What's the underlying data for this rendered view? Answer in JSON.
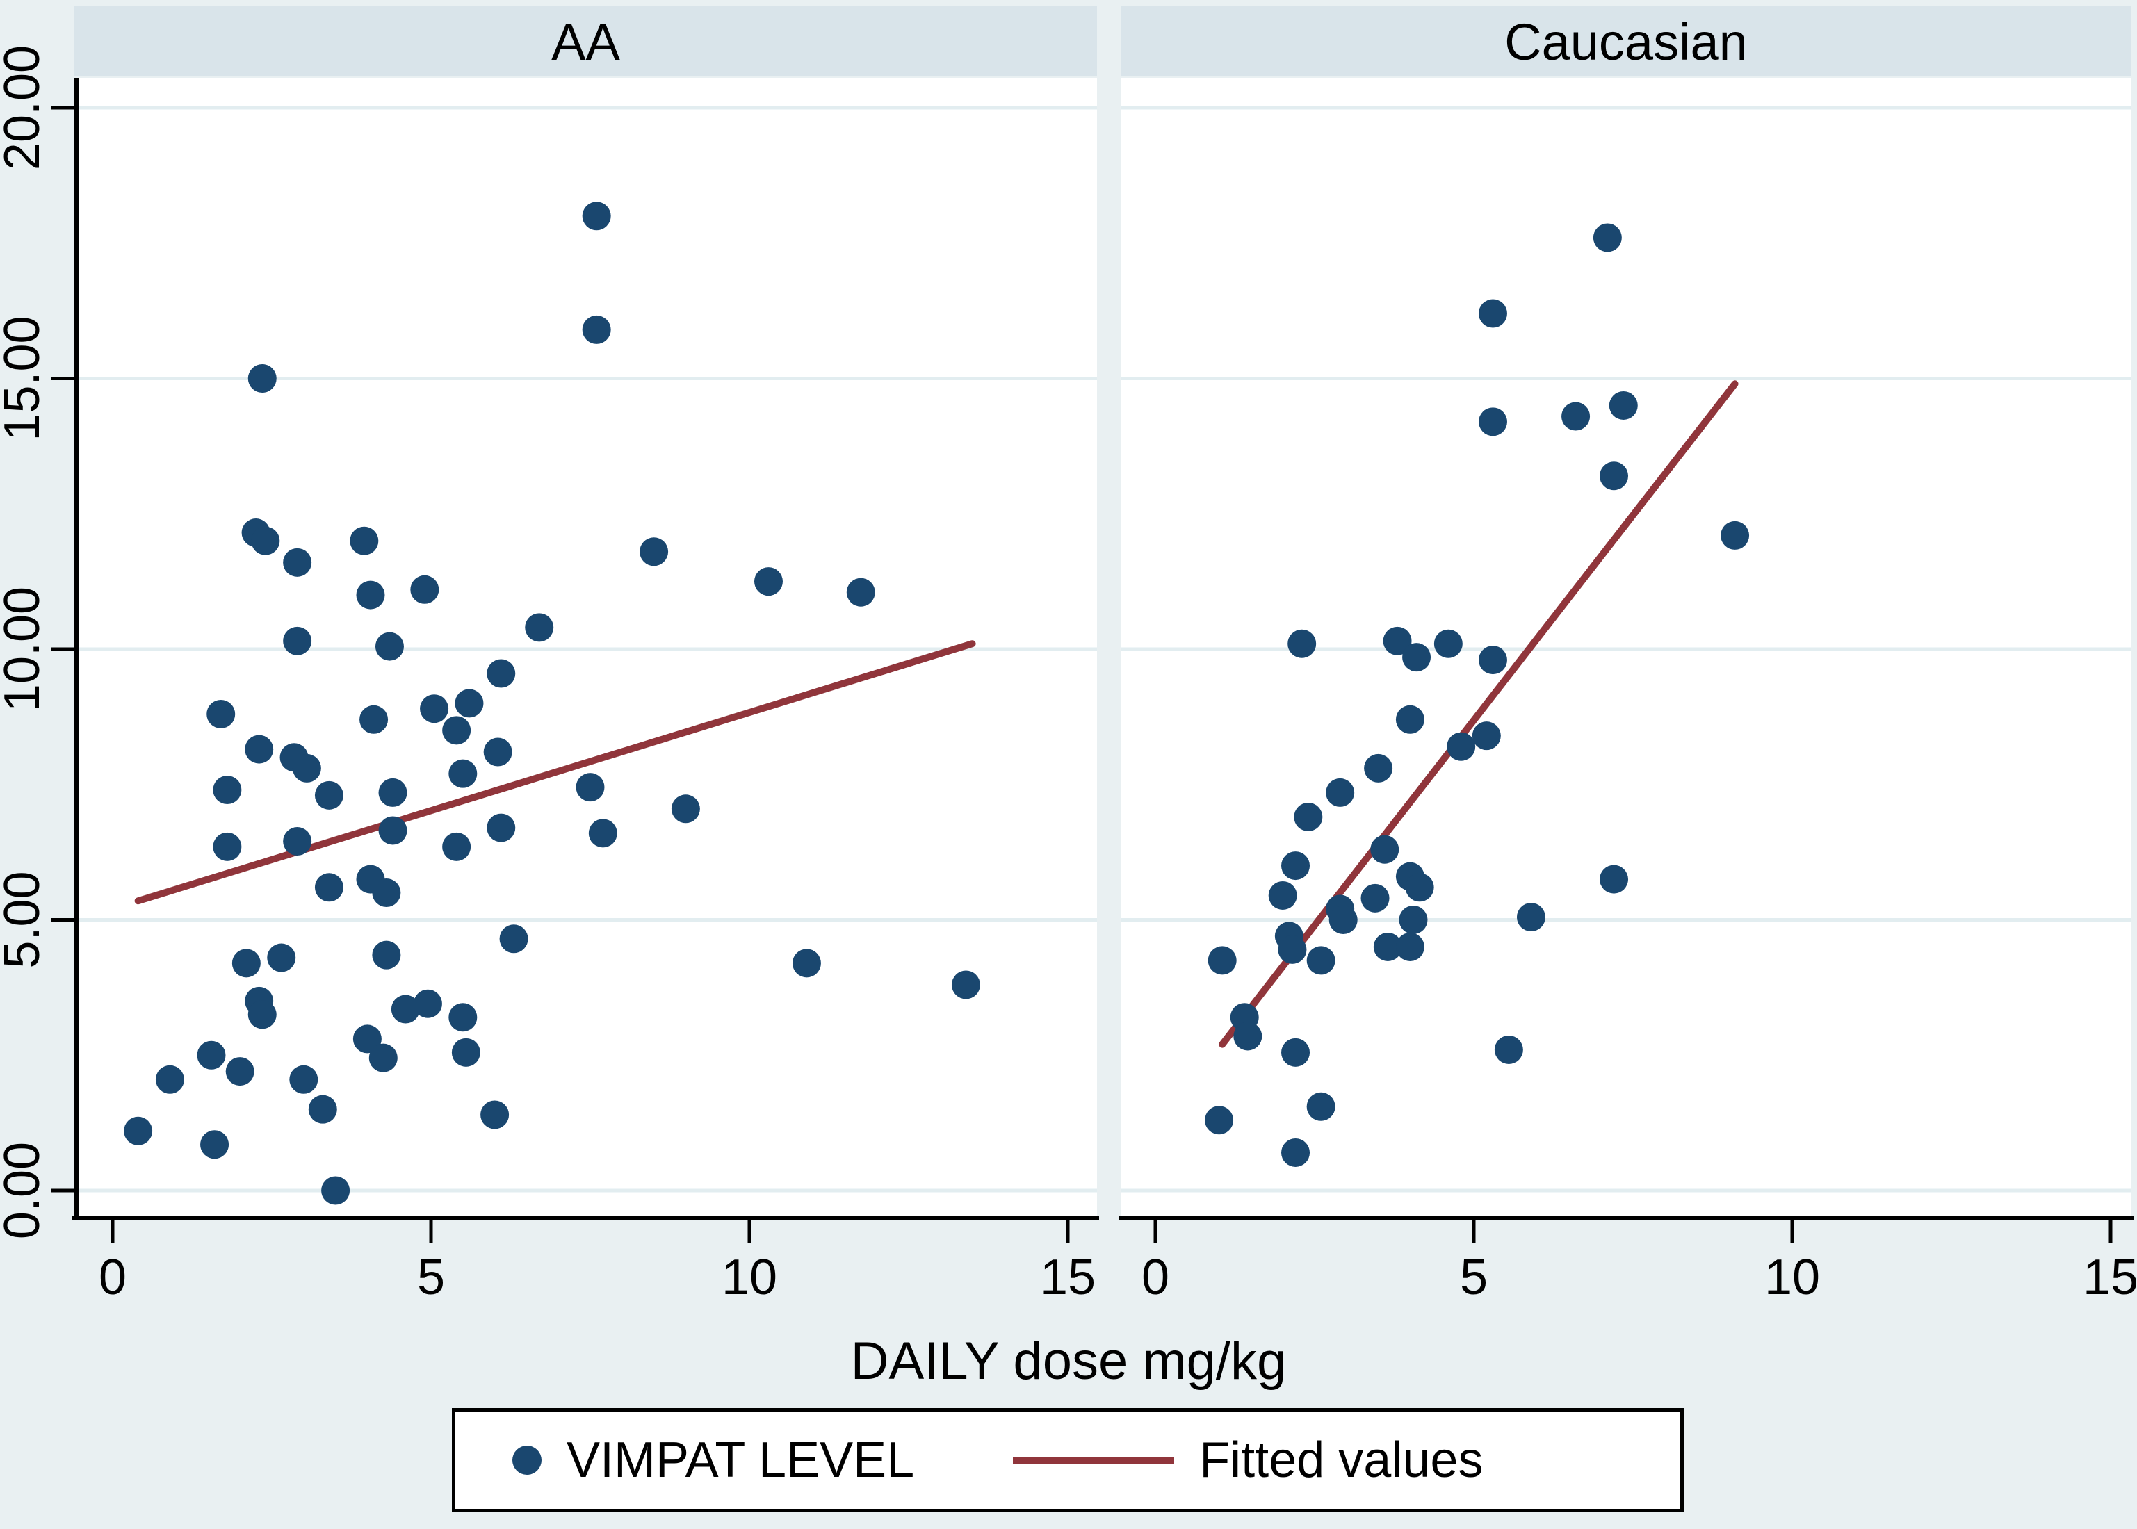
{
  "figure_labels": {
    "x_axis_label": "DAILY dose mg/kg",
    "legend_marker_label": "VIMPAT LEVEL",
    "legend_line_label": "Fitted values"
  },
  "chart_data": {
    "type": "scatter",
    "facets": "two panels sharing y axis",
    "title": "",
    "xlabel": "DAILY dose mg/kg",
    "ylabel": "",
    "xlim": [
      0,
      15
    ],
    "ylim": [
      0,
      20
    ],
    "x_tick_labels": [
      "0",
      "5",
      "10",
      "15"
    ],
    "x_tick_values": [
      0,
      5,
      10,
      15
    ],
    "y_tick_labels": [
      "0.00",
      "5.00",
      "10.00",
      "15.00",
      "20.00"
    ],
    "y_tick_values": [
      0,
      5,
      10,
      15,
      20
    ],
    "grid": "horizontal gridlines at y ticks",
    "legend_position": "bottom box",
    "colors": {
      "point": "#1a476f",
      "fit_line": "#90353b",
      "outer_background": "#e9f0f2",
      "strip_background": "#d9e4ea",
      "plot_background": "#ffffff",
      "gridline": "#e2edf0",
      "axis": "#000000"
    },
    "series_legend": [
      {
        "name": "VIMPAT LEVEL",
        "type": "marker"
      },
      {
        "name": "Fitted values",
        "type": "line"
      }
    ],
    "panels": [
      {
        "title": "AA",
        "points": [
          [
            0.4,
            1.1
          ],
          [
            0.9,
            2.05
          ],
          [
            1.55,
            2.5
          ],
          [
            1.6,
            0.85
          ],
          [
            1.7,
            8.8
          ],
          [
            1.8,
            7.4
          ],
          [
            1.8,
            6.35
          ],
          [
            2.0,
            2.2
          ],
          [
            2.1,
            4.2
          ],
          [
            2.25,
            12.15
          ],
          [
            2.3,
            3.5
          ],
          [
            2.35,
            3.25
          ],
          [
            2.3,
            8.15
          ],
          [
            2.35,
            15.0
          ],
          [
            2.4,
            12.0
          ],
          [
            2.65,
            4.3
          ],
          [
            2.85,
            8.0
          ],
          [
            2.9,
            10.15
          ],
          [
            2.9,
            11.6
          ],
          [
            2.9,
            6.45
          ],
          [
            3.0,
            2.05
          ],
          [
            3.05,
            7.8
          ],
          [
            3.3,
            1.5
          ],
          [
            3.4,
            5.6
          ],
          [
            3.4,
            7.3
          ],
          [
            3.5,
            0.0
          ],
          [
            3.95,
            12.0
          ],
          [
            4.05,
            5.75
          ],
          [
            4.0,
            2.8
          ],
          [
            4.05,
            11.0
          ],
          [
            4.1,
            8.7
          ],
          [
            4.25,
            2.45
          ],
          [
            4.3,
            4.35
          ],
          [
            4.3,
            5.5
          ],
          [
            4.35,
            10.05
          ],
          [
            4.4,
            6.65
          ],
          [
            4.4,
            7.35
          ],
          [
            4.6,
            3.35
          ],
          [
            4.9,
            11.1
          ],
          [
            4.95,
            3.45
          ],
          [
            5.05,
            8.9
          ],
          [
            5.4,
            8.5
          ],
          [
            5.4,
            6.35
          ],
          [
            5.5,
            3.2
          ],
          [
            5.5,
            7.7
          ],
          [
            5.55,
            2.55
          ],
          [
            5.6,
            9.0
          ],
          [
            6.0,
            1.4
          ],
          [
            6.05,
            8.1
          ],
          [
            6.1,
            9.55
          ],
          [
            6.1,
            6.7
          ],
          [
            6.3,
            4.65
          ],
          [
            6.7,
            10.4
          ],
          [
            7.5,
            7.45
          ],
          [
            7.6,
            18.0
          ],
          [
            7.6,
            15.9
          ],
          [
            7.7,
            6.6
          ],
          [
            8.5,
            11.8
          ],
          [
            9.0,
            7.05
          ],
          [
            10.3,
            11.25
          ],
          [
            10.9,
            4.2
          ],
          [
            11.75,
            11.05
          ],
          [
            13.4,
            3.8
          ]
        ],
        "fit_line": {
          "x1": 0.4,
          "y1": 5.35,
          "x2": 13.5,
          "y2": 10.1
        }
      },
      {
        "title": "Caucasian",
        "points": [
          [
            1.0,
            1.3
          ],
          [
            1.05,
            4.25
          ],
          [
            1.4,
            3.2
          ],
          [
            1.45,
            2.85
          ],
          [
            2.0,
            5.45
          ],
          [
            2.1,
            4.7
          ],
          [
            2.15,
            4.45
          ],
          [
            2.2,
            6.0
          ],
          [
            2.2,
            2.55
          ],
          [
            2.2,
            0.7
          ],
          [
            2.3,
            10.1
          ],
          [
            2.4,
            6.9
          ],
          [
            2.6,
            4.25
          ],
          [
            2.6,
            1.55
          ],
          [
            2.9,
            7.35
          ],
          [
            2.9,
            5.2
          ],
          [
            2.95,
            5.0
          ],
          [
            3.45,
            5.4
          ],
          [
            3.5,
            7.8
          ],
          [
            3.6,
            6.3
          ],
          [
            3.65,
            4.5
          ],
          [
            3.8,
            10.15
          ],
          [
            4.0,
            8.7
          ],
          [
            4.0,
            5.8
          ],
          [
            4.0,
            4.5
          ],
          [
            4.1,
            9.85
          ],
          [
            4.15,
            5.6
          ],
          [
            4.05,
            5.0
          ],
          [
            4.6,
            10.1
          ],
          [
            4.8,
            8.2
          ],
          [
            5.2,
            8.4
          ],
          [
            5.3,
            16.2
          ],
          [
            5.3,
            14.2
          ],
          [
            5.3,
            9.8
          ],
          [
            5.55,
            2.6
          ],
          [
            5.9,
            5.05
          ],
          [
            6.6,
            14.3
          ],
          [
            7.1,
            17.6
          ],
          [
            7.2,
            13.2
          ],
          [
            7.35,
            14.5
          ],
          [
            7.2,
            5.75
          ],
          [
            9.1,
            12.1
          ]
        ],
        "fit_line": {
          "x1": 1.05,
          "y1": 2.7,
          "x2": 9.1,
          "y2": 14.9
        }
      }
    ]
  }
}
